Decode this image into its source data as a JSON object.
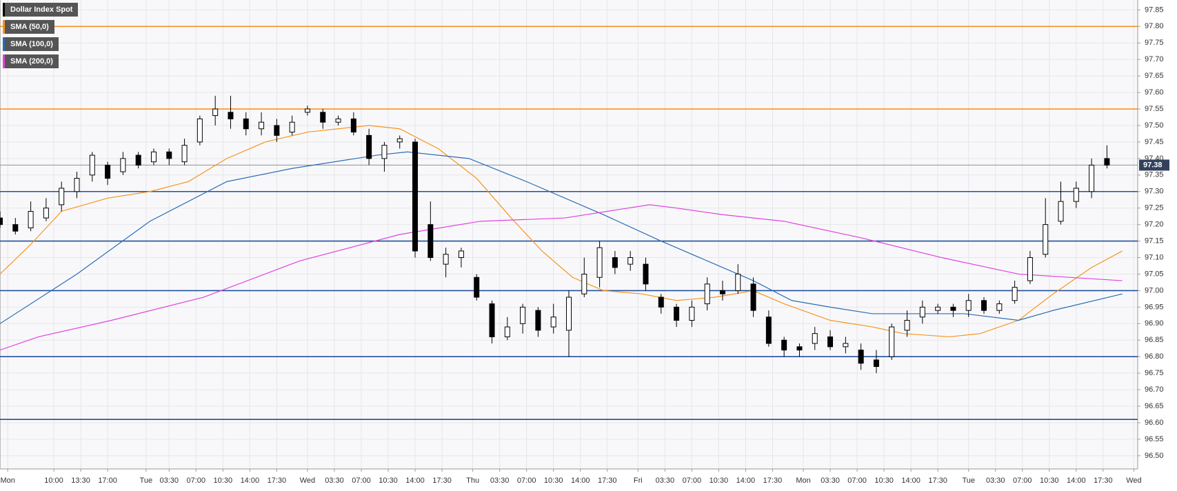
{
  "chart_data": {
    "type": "candlestick",
    "xlim": [
      0,
      148
    ],
    "ylim": [
      96.46,
      97.88
    ],
    "grid": true,
    "legend": "top-left",
    "xticks": [
      {
        "value": 1,
        "label": "Mon"
      },
      {
        "value": 7,
        "label": "10:00"
      },
      {
        "value": 10.5,
        "label": "13:30"
      },
      {
        "value": 14,
        "label": "17:00"
      },
      {
        "value": 19,
        "label": "Tue"
      },
      {
        "value": 22,
        "label": "03:30"
      },
      {
        "value": 25.5,
        "label": "07:00"
      },
      {
        "value": 29,
        "label": "10:30"
      },
      {
        "value": 32.5,
        "label": "14:00"
      },
      {
        "value": 36,
        "label": "17:30"
      },
      {
        "value": 40,
        "label": "Wed"
      },
      {
        "value": 43.5,
        "label": "03:30"
      },
      {
        "value": 47,
        "label": "07:00"
      },
      {
        "value": 50.5,
        "label": "10:30"
      },
      {
        "value": 54,
        "label": "14:00"
      },
      {
        "value": 57.5,
        "label": "17:30"
      },
      {
        "value": 61.5,
        "label": "Thu"
      },
      {
        "value": 65,
        "label": "03:30"
      },
      {
        "value": 68.5,
        "label": "07:00"
      },
      {
        "value": 72,
        "label": "10:30"
      },
      {
        "value": 75.5,
        "label": "14:00"
      },
      {
        "value": 79,
        "label": "17:30"
      },
      {
        "value": 83,
        "label": "Fri"
      },
      {
        "value": 86.5,
        "label": "03:30"
      },
      {
        "value": 90,
        "label": "07:00"
      },
      {
        "value": 93.5,
        "label": "10:30"
      },
      {
        "value": 97,
        "label": "14:00"
      },
      {
        "value": 100.5,
        "label": "17:30"
      },
      {
        "value": 104.5,
        "label": "Mon"
      },
      {
        "value": 108,
        "label": "03:30"
      },
      {
        "value": 111.5,
        "label": "07:00"
      },
      {
        "value": 115,
        "label": "10:30"
      },
      {
        "value": 118.5,
        "label": "14:00"
      },
      {
        "value": 122,
        "label": "17:30"
      },
      {
        "value": 126,
        "label": "Tue"
      },
      {
        "value": 129.5,
        "label": "03:30"
      },
      {
        "value": 133,
        "label": "07:00"
      },
      {
        "value": 136.5,
        "label": "10:30"
      },
      {
        "value": 140,
        "label": "14:00"
      },
      {
        "value": 143.5,
        "label": "17:30"
      },
      {
        "value": 147.5,
        "label": "Wed"
      }
    ],
    "yticks": [
      {
        "value": 96.5,
        "label": "96.50"
      },
      96.55,
      {
        "value": 96.6,
        "label": "96.60"
      },
      96.65,
      {
        "value": 96.7,
        "label": "96.70"
      },
      96.75,
      {
        "value": 96.8,
        "label": "96.80"
      },
      96.85,
      {
        "value": 96.9,
        "label": "96.90"
      },
      96.95,
      {
        "value": 97,
        "label": "97.00"
      },
      97.05,
      {
        "value": 97.1,
        "label": "97.10"
      },
      97.15,
      {
        "value": 97.2,
        "label": "97.20"
      },
      97.25,
      {
        "value": 97.3,
        "label": "97.30"
      },
      97.35,
      {
        "value": 97.4,
        "label": "97.40"
      },
      97.45,
      {
        "value": 97.5,
        "label": "97.50"
      },
      97.55,
      {
        "value": 97.6,
        "label": "97.60"
      },
      97.65,
      {
        "value": 97.7,
        "label": "97.70"
      },
      97.75,
      {
        "value": 97.8,
        "label": "97.80"
      },
      97.85
    ],
    "levels": [
      {
        "value": 97.8,
        "color": "#f7931e"
      },
      {
        "value": 97.55,
        "color": "#f7931e"
      },
      {
        "value": 97.3,
        "color": "#1f4e9c"
      },
      {
        "value": 97.15,
        "color": "#1f4e9c"
      },
      {
        "value": 97.0,
        "color": "#1f4e9c"
      },
      {
        "value": 96.8,
        "color": "#1f4e9c"
      },
      {
        "value": 96.61,
        "color": "#1f4e9c"
      }
    ],
    "last_price": 97.38,
    "series": [
      {
        "name": "Dollar Index Spot",
        "color": "#000000",
        "x": [
          0,
          2,
          4,
          6,
          8,
          10,
          12,
          14,
          16,
          18,
          20,
          22,
          24,
          26,
          28,
          30,
          32,
          34,
          36,
          38,
          40,
          42,
          44,
          46,
          48,
          50,
          52,
          54,
          56,
          58,
          60,
          62,
          64,
          66,
          68,
          70,
          72,
          74,
          76,
          78,
          80,
          82,
          84,
          86,
          88,
          90,
          92,
          94,
          96,
          98,
          100,
          102,
          104,
          106,
          108,
          110,
          112,
          114,
          116,
          118,
          120,
          122,
          124,
          126,
          128,
          130,
          132,
          134,
          136,
          138,
          140,
          142,
          144
        ],
        "open": [
          97.22,
          97.2,
          97.19,
          97.22,
          97.26,
          97.3,
          97.35,
          97.38,
          97.36,
          97.41,
          97.39,
          97.42,
          97.39,
          97.45,
          97.53,
          97.54,
          97.52,
          97.49,
          97.5,
          97.48,
          97.54,
          97.54,
          97.51,
          97.52,
          97.47,
          97.4,
          97.45,
          97.45,
          97.2,
          97.08,
          97.1,
          97.04,
          96.96,
          96.86,
          96.9,
          96.94,
          96.89,
          96.88,
          96.99,
          97.04,
          97.1,
          97.08,
          97.08,
          96.98,
          96.95,
          96.91,
          96.96,
          97.0,
          97.0,
          97.02,
          96.92,
          96.85,
          96.83,
          96.84,
          96.86,
          96.83,
          96.82,
          96.79,
          96.8,
          96.88,
          96.92,
          96.94,
          96.95,
          96.94,
          96.97,
          96.94,
          96.97,
          97.03,
          97.11,
          97.21,
          97.27,
          97.3,
          97.4
        ],
        "high": [
          97.24,
          97.22,
          97.27,
          97.28,
          97.33,
          97.36,
          97.42,
          97.39,
          97.42,
          97.42,
          97.43,
          97.43,
          97.46,
          97.53,
          97.59,
          97.59,
          97.54,
          97.54,
          97.52,
          97.53,
          97.56,
          97.55,
          97.53,
          97.54,
          97.49,
          97.45,
          97.47,
          97.46,
          97.27,
          97.13,
          97.13,
          97.05,
          96.97,
          96.92,
          96.96,
          96.95,
          96.96,
          97.0,
          97.1,
          97.15,
          97.12,
          97.12,
          97.1,
          96.99,
          96.96,
          96.97,
          97.04,
          97.03,
          97.08,
          97.04,
          96.94,
          96.86,
          96.84,
          96.89,
          96.88,
          96.86,
          96.84,
          96.82,
          96.9,
          96.94,
          96.97,
          96.96,
          96.96,
          96.99,
          96.98,
          96.97,
          97.03,
          97.12,
          97.28,
          97.33,
          97.33,
          97.4,
          97.44
        ],
        "low": [
          97.19,
          97.17,
          97.18,
          97.21,
          97.24,
          97.28,
          97.33,
          97.32,
          97.35,
          97.37,
          97.38,
          97.38,
          97.38,
          97.44,
          97.5,
          97.49,
          97.47,
          97.47,
          97.45,
          97.47,
          97.53,
          97.49,
          97.5,
          97.47,
          97.38,
          97.36,
          97.43,
          97.1,
          97.09,
          97.04,
          97.07,
          96.97,
          96.84,
          96.85,
          96.87,
          96.86,
          96.87,
          96.8,
          96.98,
          97.01,
          97.05,
          97.06,
          97.0,
          96.93,
          96.89,
          96.89,
          96.94,
          96.97,
          96.99,
          96.92,
          96.83,
          96.8,
          96.8,
          96.82,
          96.82,
          96.81,
          96.76,
          96.75,
          96.79,
          96.86,
          96.9,
          96.93,
          96.92,
          96.92,
          96.93,
          96.93,
          96.96,
          97.02,
          97.1,
          97.2,
          97.25,
          97.28,
          97.37
        ],
        "close": [
          97.2,
          97.18,
          97.24,
          97.25,
          97.31,
          97.34,
          97.41,
          97.34,
          97.4,
          97.38,
          97.42,
          97.4,
          97.44,
          97.52,
          97.55,
          97.52,
          97.49,
          97.51,
          97.47,
          97.51,
          97.55,
          97.51,
          97.52,
          97.48,
          97.4,
          97.44,
          97.46,
          97.12,
          97.1,
          97.11,
          97.12,
          96.98,
          96.86,
          96.89,
          96.95,
          96.88,
          96.92,
          96.98,
          97.05,
          97.13,
          97.07,
          97.1,
          97.02,
          96.95,
          96.91,
          96.95,
          97.02,
          96.99,
          97.05,
          96.94,
          96.84,
          96.82,
          96.82,
          96.87,
          96.83,
          96.84,
          96.78,
          96.77,
          96.89,
          96.91,
          96.95,
          96.95,
          96.94,
          96.97,
          96.94,
          96.96,
          97.01,
          97.1,
          97.2,
          97.27,
          97.31,
          97.38,
          97.38
        ]
      },
      {
        "name": "SMA (50,0)",
        "color": "#f7931e",
        "x": [
          0,
          4,
          8,
          14,
          19.5,
          24.5,
          29.5,
          34.5,
          40,
          48,
          52,
          57,
          62,
          66.5,
          70.5,
          74.5,
          78.5,
          83.5,
          88,
          93,
          98,
          102,
          108,
          113.5,
          117.5,
          123.5,
          127.5,
          132.5,
          137,
          142,
          146
        ],
        "values": [
          97.05,
          97.14,
          97.24,
          97.28,
          97.3,
          97.33,
          97.4,
          97.45,
          97.48,
          97.5,
          97.49,
          97.43,
          97.34,
          97.22,
          97.12,
          97.04,
          97.0,
          96.99,
          96.97,
          96.98,
          97.0,
          96.96,
          96.91,
          96.89,
          96.87,
          96.86,
          96.87,
          96.91,
          96.99,
          97.07,
          97.12
        ]
      },
      {
        "name": "SMA (100,0)",
        "color": "#2a6cb5",
        "x": [
          0,
          10,
          19.5,
          29.5,
          38,
          49,
          53,
          61,
          68.5,
          78.5,
          86,
          93,
          98,
          103,
          108,
          113.5,
          119.5,
          125.5,
          132.5,
          137,
          146
        ],
        "values": [
          96.9,
          97.05,
          97.21,
          97.33,
          97.37,
          97.41,
          97.42,
          97.4,
          97.33,
          97.23,
          97.15,
          97.08,
          97.03,
          96.97,
          96.95,
          96.93,
          96.93,
          96.93,
          96.91,
          96.94,
          96.99
        ]
      },
      {
        "name": "SMA (200,0)",
        "color": "#e040e0",
        "x": [
          0,
          5,
          14.5,
          26.5,
          39,
          52,
          62.5,
          73.5,
          84.5,
          88,
          94,
          102,
          112,
          122.5,
          132.5,
          146
        ],
        "values": [
          96.82,
          96.86,
          96.91,
          96.98,
          97.09,
          97.17,
          97.21,
          97.22,
          97.26,
          97.25,
          97.23,
          97.21,
          97.16,
          97.1,
          97.05,
          97.03
        ]
      }
    ]
  }
}
